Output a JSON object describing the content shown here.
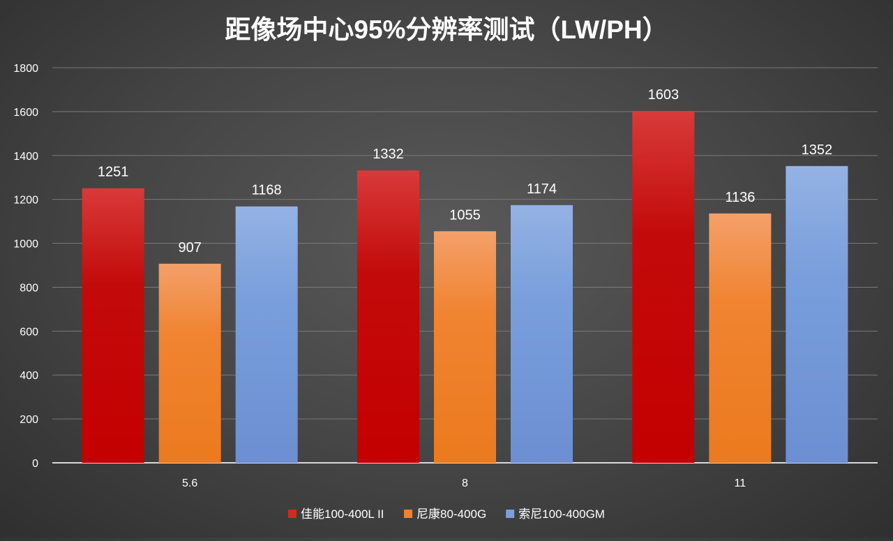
{
  "chart_data": {
    "type": "bar",
    "title": "距像场中心95%分辨率测试（LW/PH）",
    "xlabel": "",
    "ylabel": "",
    "ylim": [
      0,
      1800
    ],
    "yticks": [
      0,
      200,
      400,
      600,
      800,
      1000,
      1200,
      1400,
      1600,
      1800
    ],
    "grid": true,
    "legend_position": "bottom",
    "categories": [
      "5.6",
      "8",
      "11"
    ],
    "series": [
      {
        "name": "佳能100-400L II",
        "values": [
          1251,
          1332,
          1603
        ],
        "color": "#d42a1e"
      },
      {
        "name": "尼康80-400G",
        "values": [
          907,
          1055,
          1136
        ],
        "color": "#f0822f"
      },
      {
        "name": "索尼100-400GM",
        "values": [
          1168,
          1174,
          1352
        ],
        "color": "#7a9fdc"
      }
    ]
  }
}
